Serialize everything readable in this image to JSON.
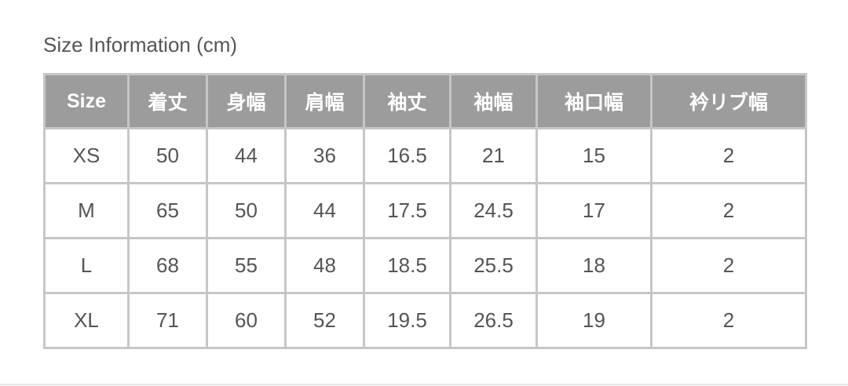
{
  "title": "Size Information (cm)",
  "headers": [
    "Size",
    "着丈",
    "身幅",
    "肩幅",
    "袖丈",
    "袖幅",
    "袖口幅",
    "衿リブ幅"
  ],
  "rows": [
    [
      "XS",
      "50",
      "44",
      "36",
      "16.5",
      "21",
      "15",
      "2"
    ],
    [
      "M",
      "65",
      "50",
      "44",
      "17.5",
      "24.5",
      "17",
      "2"
    ],
    [
      "L",
      "68",
      "55",
      "48",
      "18.5",
      "25.5",
      "18",
      "2"
    ],
    [
      "XL",
      "71",
      "60",
      "52",
      "19.5",
      "26.5",
      "19",
      "2"
    ]
  ]
}
